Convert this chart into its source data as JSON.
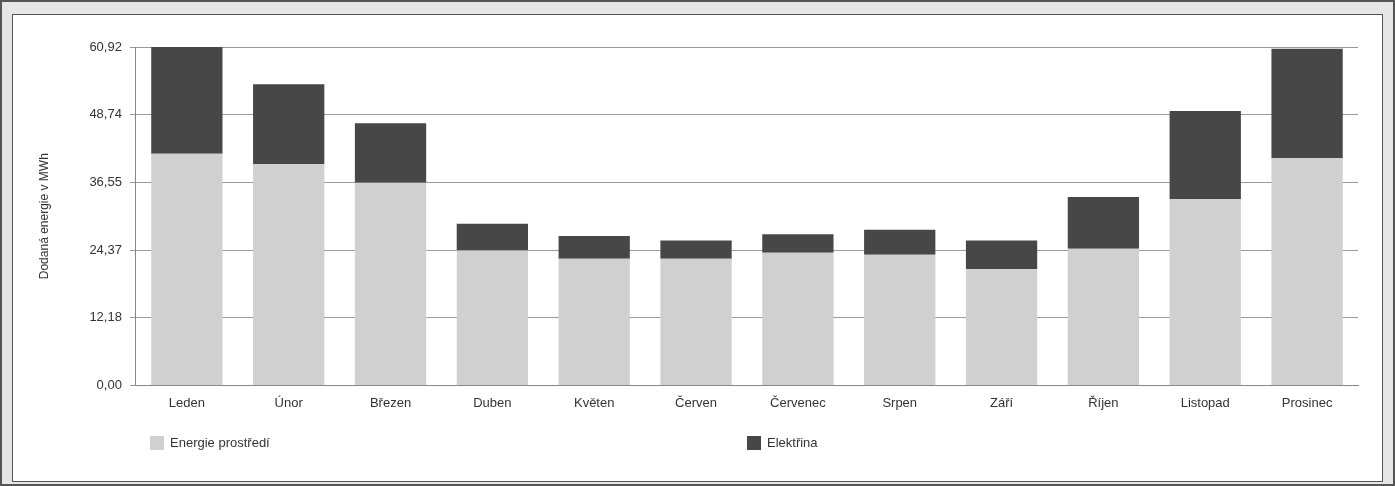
{
  "chart_data": {
    "type": "bar",
    "stacked": true,
    "ylabel": "Dodaná energie v MWh",
    "categories": [
      "Leden",
      "Únor",
      "Březen",
      "Duben",
      "Květen",
      "Červen",
      "Červenec",
      "Srpen",
      "Září",
      "Říjen",
      "Listopad",
      "Prosinec"
    ],
    "series": [
      {
        "name": "Energie prostředí",
        "color": "#d0d0d0",
        "values": [
          41.7,
          39.8,
          36.5,
          24.3,
          22.8,
          22.8,
          23.9,
          23.5,
          20.9,
          24.6,
          33.5,
          40.9
        ]
      },
      {
        "name": "Elektřina",
        "color": "#474747",
        "values": [
          19.2,
          14.4,
          10.7,
          4.8,
          4.1,
          3.3,
          3.3,
          4.5,
          5.2,
          9.3,
          15.9,
          19.7
        ]
      }
    ],
    "ylim": [
      0,
      60.92
    ],
    "yticks": [
      {
        "value": 0,
        "label": "0,00"
      },
      {
        "value": 12.18,
        "label": "12,18"
      },
      {
        "value": 24.37,
        "label": "24,37"
      },
      {
        "value": 36.55,
        "label": "36,55"
      },
      {
        "value": 48.74,
        "label": "48,74"
      },
      {
        "value": 60.92,
        "label": "60,92"
      }
    ],
    "grid": "y",
    "legend": "bottom"
  }
}
